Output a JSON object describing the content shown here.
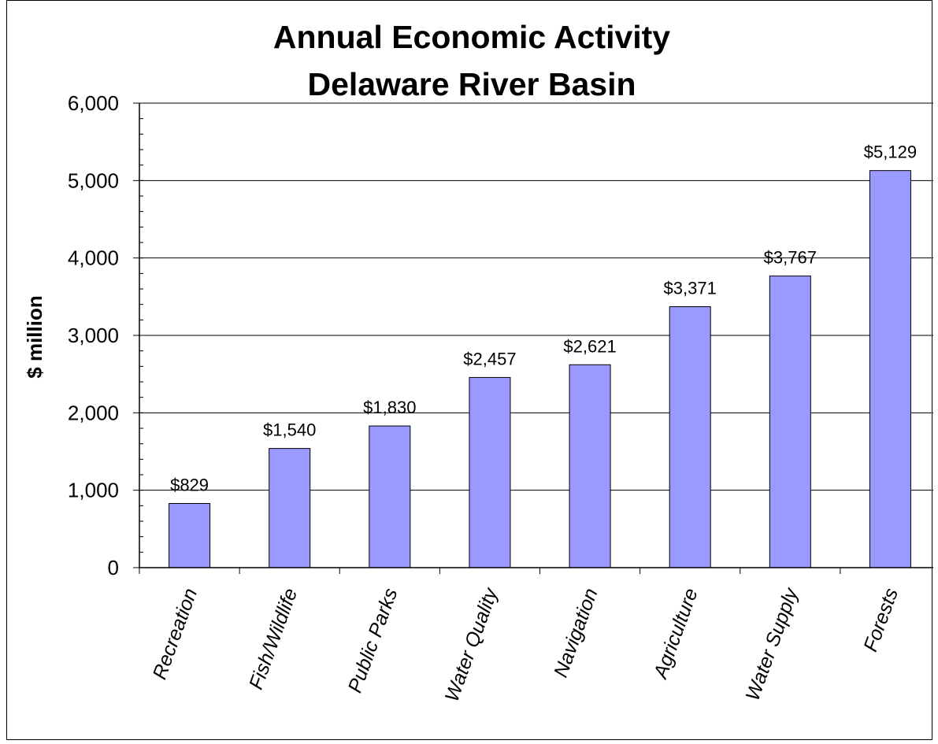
{
  "chart_data": {
    "type": "bar",
    "title": [
      "Annual Economic Activity",
      "Delaware River Basin"
    ],
    "ylabel": "$ million",
    "xlabel": "",
    "categories": [
      "Recreation",
      "Fish/Wildlife",
      "Public Parks",
      "Water Quality",
      "Navigation",
      "Agriculture",
      "Water Supply",
      "Forests"
    ],
    "values": [
      829,
      1540,
      1830,
      2457,
      2621,
      3371,
      3767,
      5129
    ],
    "value_labels": [
      "$829",
      "$1,540",
      "$1,830",
      "$2,457",
      "$2,621",
      "$3,371",
      "$3,767",
      "$5,129"
    ],
    "ylim": [
      0,
      6000
    ],
    "yticks": [
      0,
      1000,
      2000,
      3000,
      4000,
      5000,
      6000
    ],
    "ytick_labels": [
      "0",
      "1,000",
      "2,000",
      "3,000",
      "4,000",
      "5,000",
      "6,000"
    ],
    "grid": true,
    "legend": "none",
    "bar_color": "#9999ff"
  }
}
